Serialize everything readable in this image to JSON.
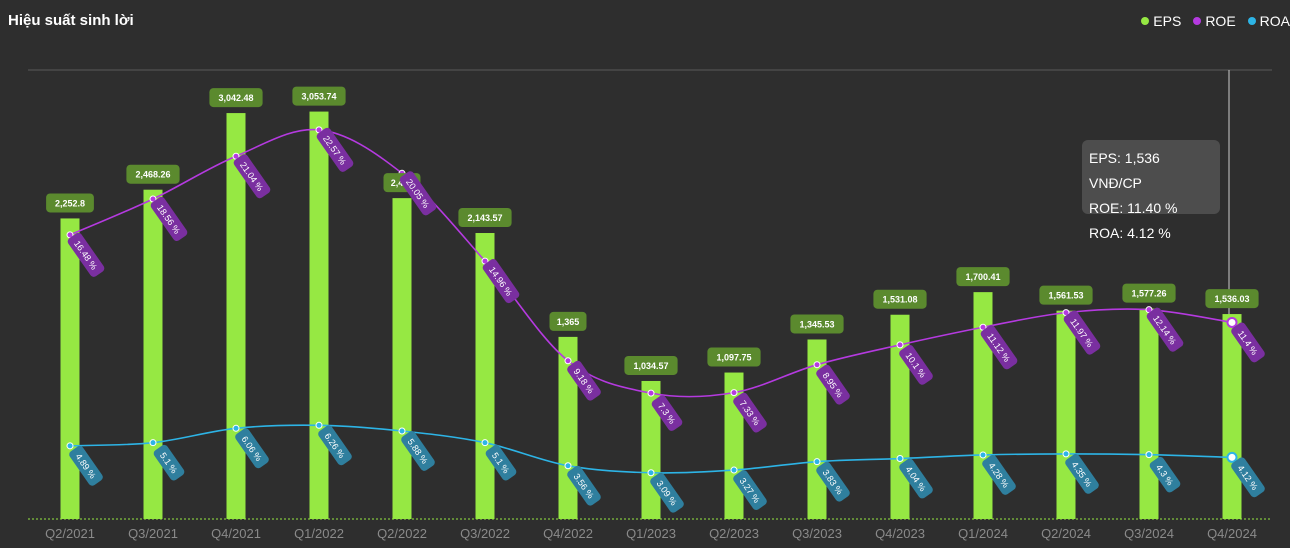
{
  "title": "Hiệu suất sinh lời",
  "legend": [
    {
      "label": "EPS",
      "color": "#96e843"
    },
    {
      "label": "ROE",
      "color": "#b53ae0"
    },
    {
      "label": "ROA",
      "color": "#2db4e6"
    }
  ],
  "tooltip": {
    "eps": "EPS: 1,536 VNĐ/CP",
    "roe": "ROE: 11.40 %",
    "roa": "ROA: 4.12 %"
  },
  "chart_data": {
    "type": "bar",
    "categories": [
      "Q2/2021",
      "Q3/2021",
      "Q4/2021",
      "Q1/2022",
      "Q2/2022",
      "Q3/2022",
      "Q4/2022",
      "Q1/2023",
      "Q2/2023",
      "Q3/2023",
      "Q4/2023",
      "Q1/2024",
      "Q2/2024",
      "Q3/2024",
      "Q4/2024"
    ],
    "series": [
      {
        "name": "EPS",
        "type": "bar",
        "color": "#96e843",
        "values": [
          2252.8,
          2468.26,
          3042.48,
          3053.74,
          2405,
          2143.57,
          1365,
          1034.57,
          1097.75,
          1345.53,
          1531.08,
          1700.41,
          1561.53,
          1577.26,
          1536.03
        ],
        "labels": [
          "2,252.8",
          "2,468.26",
          "3,042.48",
          "3,053.74",
          "2,405",
          "2,143.57",
          "1,365",
          "1,034.57",
          "1,097.75",
          "1,345.53",
          "1,531.08",
          "1,700.41",
          "1,561.53",
          "1,577.26",
          "1,536.03"
        ]
      },
      {
        "name": "ROE",
        "type": "line",
        "color": "#b53ae0",
        "values": [
          16.48,
          18.56,
          21.04,
          22.57,
          20.05,
          14.96,
          9.18,
          7.3,
          7.33,
          8.95,
          10.1,
          11.12,
          11.97,
          12.14,
          11.4
        ],
        "labels": [
          "16.48 %",
          "18.56 %",
          "21.04 %",
          "22.57 %",
          "20.05 %",
          "14.96 %",
          "9.18 %",
          "7.3 %",
          "7.33 %",
          "8.95 %",
          "10.1 %",
          "11.12 %",
          "11.97 %",
          "12.14 %",
          "11.4 %"
        ]
      },
      {
        "name": "ROA",
        "type": "line",
        "color": "#2db4e6",
        "values": [
          4.89,
          5.1,
          6.06,
          6.26,
          5.88,
          5.1,
          3.56,
          3.09,
          3.27,
          3.83,
          4.04,
          4.28,
          4.35,
          4.3,
          4.12
        ],
        "labels": [
          "4.89 %",
          "5.1 %",
          "6.06 %",
          "6.26 %",
          "5.88 %",
          "5.1 %",
          "3.56 %",
          "3.09 %",
          "3.27 %",
          "3.83 %",
          "4.04 %",
          "4.28 %",
          "4.35 %",
          "4.3 %",
          "4.12 %"
        ]
      }
    ],
    "eps_range": [
      0,
      3500
    ],
    "roe_range": [
      0,
      25
    ],
    "roa_range": [
      0,
      15
    ],
    "highlight_category": "Q4/2024",
    "grid": false,
    "legend_position": "top-right"
  }
}
